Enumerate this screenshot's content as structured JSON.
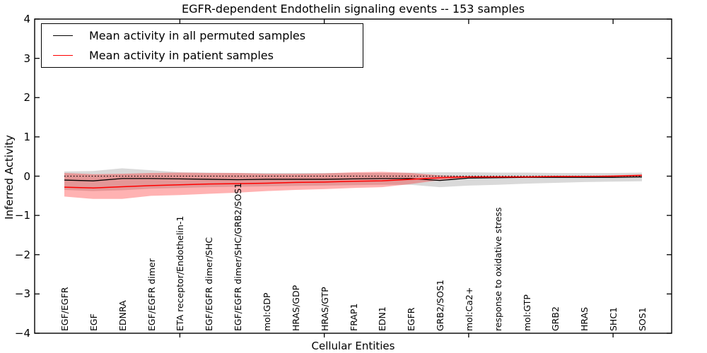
{
  "figure": {
    "title": "EGFR-dependent Endothelin signaling events -- 153 samples",
    "xlabel": "Cellular Entities",
    "ylabel": "Inferred Activity"
  },
  "chart_data": {
    "type": "line",
    "title": "EGFR-dependent Endothelin signaling events -- 153 samples",
    "xlabel": "Cellular Entities",
    "ylabel": "Inferred Activity",
    "ylim": [
      -4,
      4
    ],
    "ytick_labels": [
      "4",
      "3",
      "2",
      "1",
      "0",
      "−1",
      "−2",
      "−3",
      "−4"
    ],
    "grid": false,
    "legend_position": "upper left",
    "zero_line": {
      "y": 0,
      "style": "dotted",
      "color": "#000000"
    },
    "categories": [
      "EGF/EGFR",
      "EGF",
      "EDNRA",
      "EGF/EGFR dimer",
      "ETA receptor/Endothelin-1",
      "EGF/EGFR dimer/SHC",
      "EGF/EGFR dimer/SHC/GRB2/SOS1",
      "mol:GDP",
      "HRAS/GDP",
      "HRAS/GTP",
      "FRAP1",
      "EDN1",
      "EGFR",
      "GRB2/SOS1",
      "mol:Ca2+",
      "response to oxidative stress",
      "mol:GTP",
      "GRB2",
      "HRAS",
      "SHC1",
      "SOS1"
    ],
    "series": [
      {
        "name": "Mean activity in all permuted samples",
        "color": "#000000",
        "line_width": 1.3,
        "values": [
          -0.1,
          -0.12,
          -0.06,
          -0.06,
          -0.07,
          -0.08,
          -0.09,
          -0.08,
          -0.08,
          -0.08,
          -0.07,
          -0.06,
          -0.06,
          -0.11,
          -0.05,
          -0.04,
          -0.03,
          -0.03,
          -0.03,
          -0.03,
          -0.02
        ]
      },
      {
        "name": "Mean activity in patient samples",
        "color": "#ff0000",
        "line_width": 1.5,
        "values": [
          -0.28,
          -0.3,
          -0.27,
          -0.24,
          -0.22,
          -0.2,
          -0.19,
          -0.18,
          -0.16,
          -0.15,
          -0.13,
          -0.12,
          -0.08,
          -0.04,
          -0.02,
          -0.02,
          -0.02,
          -0.01,
          -0.01,
          0.0,
          0.02
        ]
      }
    ],
    "bands": [
      {
        "name": "permuted samples ± std",
        "color": "#000000",
        "opacity": 0.15,
        "upper": [
          0.12,
          0.13,
          0.2,
          0.15,
          0.1,
          0.09,
          0.08,
          0.08,
          0.08,
          0.08,
          0.08,
          0.08,
          0.09,
          0.1,
          0.1,
          0.09,
          0.09,
          0.08,
          0.08,
          0.08,
          0.09
        ],
        "lower": [
          -0.35,
          -0.38,
          -0.36,
          -0.32,
          -0.3,
          -0.28,
          -0.27,
          -0.26,
          -0.25,
          -0.24,
          -0.23,
          -0.22,
          -0.22,
          -0.28,
          -0.24,
          -0.22,
          -0.19,
          -0.17,
          -0.15,
          -0.14,
          -0.13
        ]
      },
      {
        "name": "patient samples ± std",
        "color": "#ff0000",
        "opacity": 0.3,
        "upper": [
          0.08,
          0.05,
          0.06,
          0.08,
          0.09,
          0.08,
          0.08,
          0.06,
          0.06,
          0.07,
          0.1,
          0.11,
          0.08,
          0.02,
          0.0,
          0.0,
          0.0,
          0.01,
          0.01,
          0.02,
          0.04
        ],
        "lower": [
          -0.52,
          -0.58,
          -0.58,
          -0.5,
          -0.48,
          -0.45,
          -0.42,
          -0.38,
          -0.35,
          -0.33,
          -0.3,
          -0.28,
          -0.2,
          -0.1,
          -0.04,
          -0.04,
          -0.03,
          -0.03,
          -0.02,
          -0.02,
          -0.01
        ]
      }
    ],
    "legend": [
      {
        "label": "Mean activity in all permuted samples",
        "color": "#000000"
      },
      {
        "label": "Mean activity in patient samples",
        "color": "#ff0000"
      }
    ]
  }
}
